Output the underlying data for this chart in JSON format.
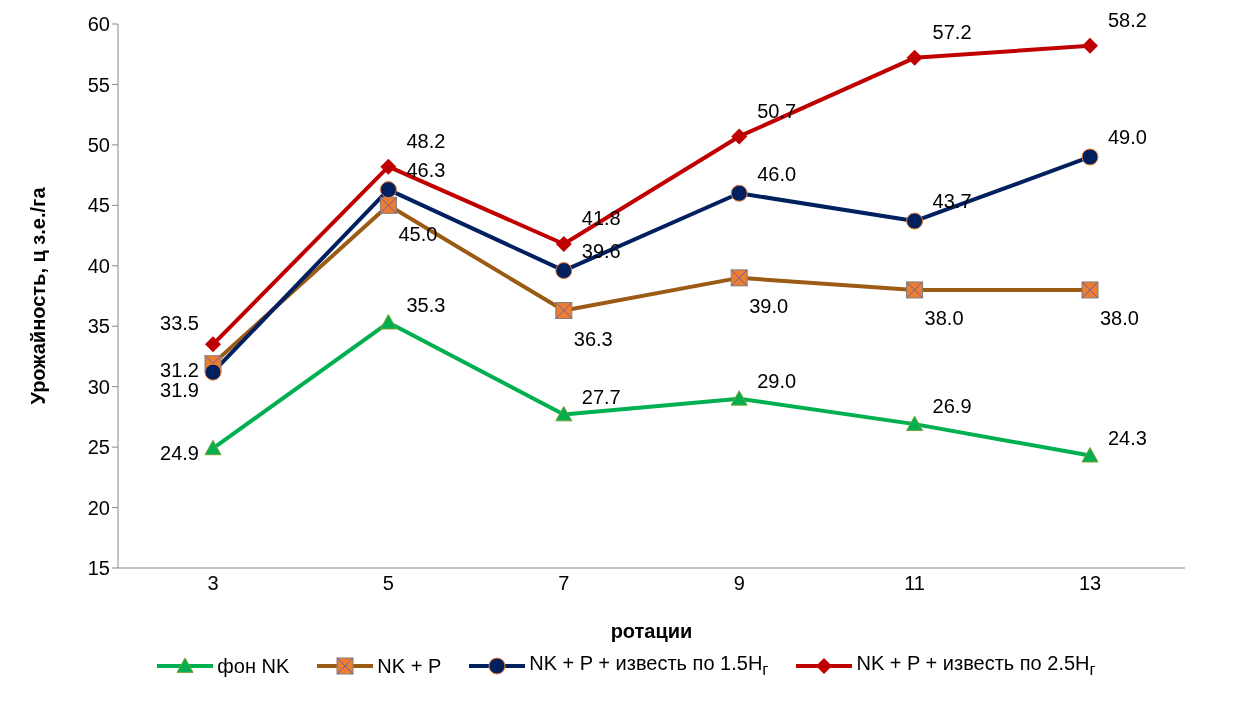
{
  "chart_data": {
    "type": "line",
    "xlabel": "ротации",
    "ylabel": "Урожайность, ц з.е./га",
    "categories": [
      "3",
      "5",
      "7",
      "9",
      "11",
      "13"
    ],
    "ylim": [
      15,
      60
    ],
    "yticks": [
      15,
      20,
      25,
      30,
      35,
      40,
      45,
      50,
      55,
      60
    ],
    "legend": "bottom",
    "series": [
      {
        "name": "фон NK",
        "color": "#00b050",
        "marker": "triangle",
        "values": [
          24.9,
          35.3,
          27.7,
          29.0,
          26.9,
          24.3
        ],
        "value_labels": [
          "24.9",
          "35.3",
          "27.7",
          "29.0",
          "26.9",
          "24.3"
        ]
      },
      {
        "name": "NK + P",
        "color": "#9c5b14",
        "marker": "square",
        "values": [
          31.9,
          45.0,
          36.3,
          39.0,
          38.0,
          38.0
        ],
        "value_labels": [
          "31.9",
          "45.0",
          "36.3",
          "39.0",
          "38.0",
          "38.0"
        ]
      },
      {
        "name": "NK + P + известь по 1.5H$_{г}$",
        "color": "#002060",
        "marker": "circle",
        "values": [
          31.2,
          46.3,
          39.6,
          46.0,
          43.7,
          49.0
        ],
        "value_labels": [
          "31.2",
          "46.3",
          "39.6",
          "46.0",
          "43.7",
          "49.0"
        ]
      },
      {
        "name": "NK + P + известь по 2.5H$_{г}$",
        "color": "#c00000",
        "marker": "diamond",
        "values": [
          33.5,
          48.2,
          41.8,
          50.7,
          57.2,
          58.2
        ],
        "value_labels": [
          "33.5",
          "48.2",
          "41.8",
          "50.7",
          "57.2",
          "58.2"
        ]
      }
    ]
  }
}
